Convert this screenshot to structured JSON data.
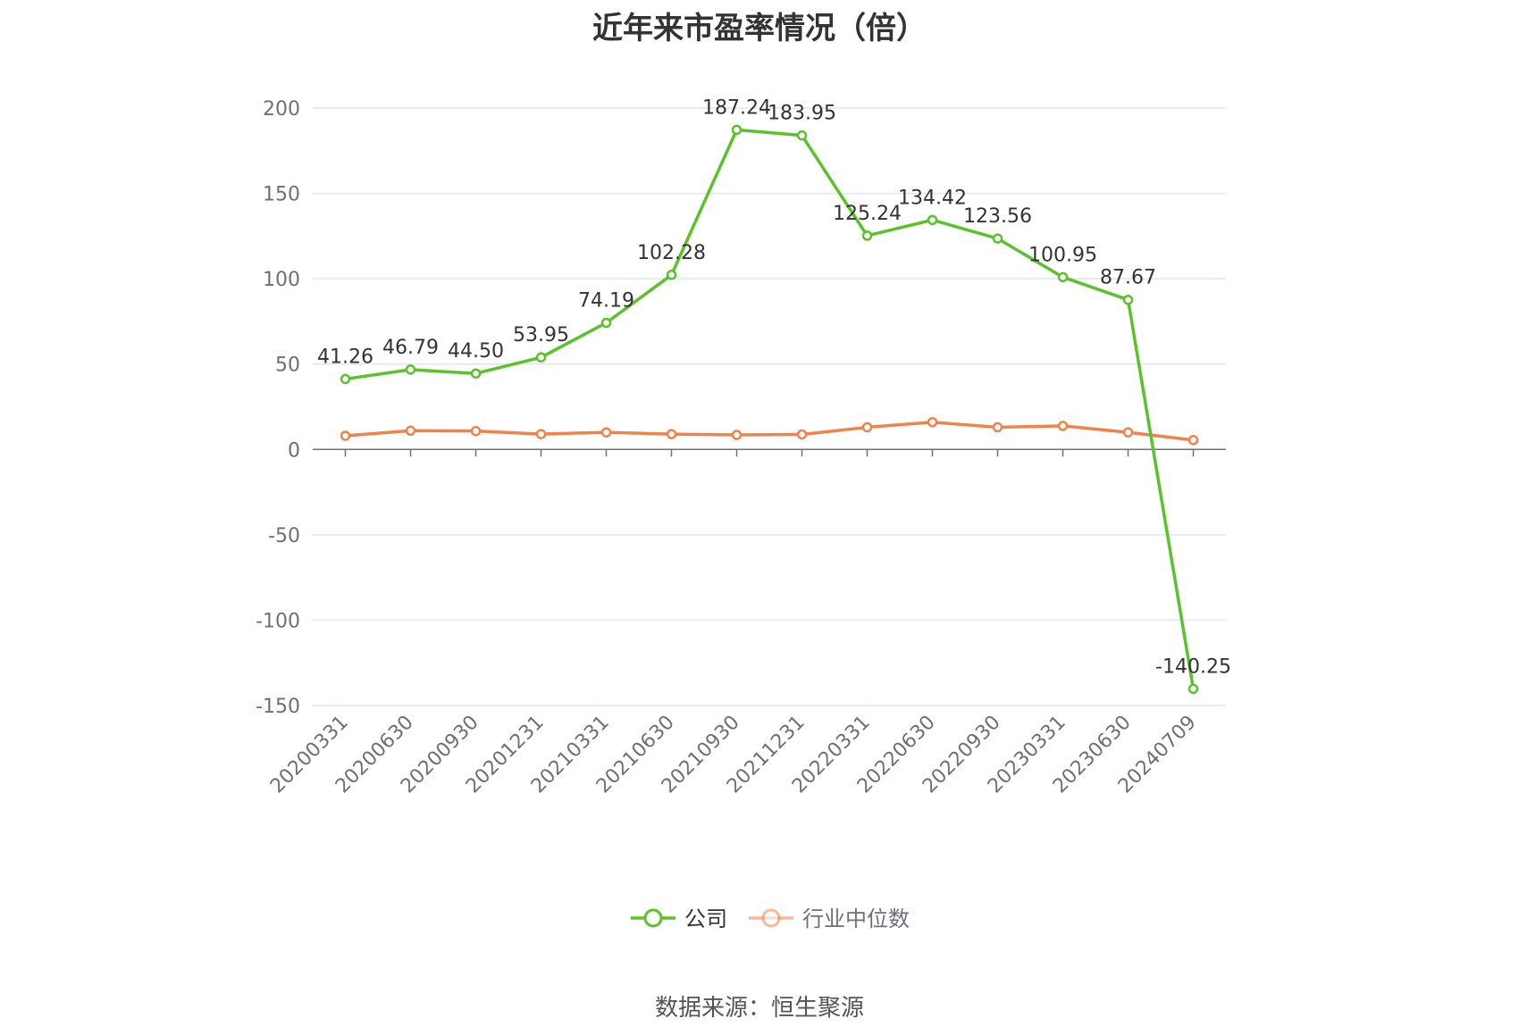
{
  "chart_data": {
    "type": "line",
    "title": "近年来市盈率情况（倍）",
    "categories": [
      "20200331",
      "20200630",
      "20200930",
      "20201231",
      "20210331",
      "20210630",
      "20210930",
      "20211231",
      "20220331",
      "20220630",
      "20220930",
      "20230331",
      "20230630",
      "20240709"
    ],
    "series": [
      {
        "name": "公司",
        "color": "#5bc22b",
        "values": [
          41.26,
          46.79,
          44.5,
          53.95,
          74.19,
          102.28,
          187.24,
          183.95,
          125.24,
          134.42,
          123.56,
          100.95,
          87.67,
          -140.25
        ],
        "labels": [
          "41.26",
          "46.79",
          "44.50",
          "53.95",
          "74.19",
          "102.28",
          "187.24",
          "183.95",
          "125.24",
          "134.42",
          "123.56",
          "100.95",
          "87.67",
          "-140.25"
        ]
      },
      {
        "name": "行业中位数",
        "color": "#f0834a",
        "values": [
          8.0,
          11.0,
          10.8,
          9.0,
          10.0,
          9.0,
          8.5,
          8.8,
          13.0,
          16.0,
          13.0,
          13.8,
          10.0,
          5.5
        ]
      }
    ],
    "yticks": [
      200,
      150,
      100,
      50,
      0,
      -50,
      -100,
      -150
    ],
    "ylim": [
      -150,
      200
    ],
    "grid": true,
    "legend_position": "bottom"
  },
  "source_text": "数据来源：恒生聚源"
}
